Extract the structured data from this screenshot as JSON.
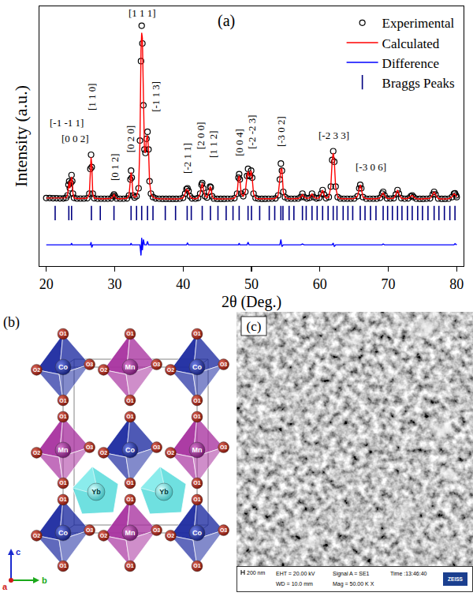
{
  "chart_data": {
    "type": "scatter",
    "panel_label": "(a)",
    "x_label": "2θ (Deg.)",
    "y_label": "Intensity (a.u.)",
    "xlim": [
      19,
      81
    ],
    "xticks": [
      20,
      30,
      40,
      50,
      60,
      70,
      80
    ],
    "ylim": [
      -36,
      111
    ],
    "tick_labels": "x",
    "grid": false,
    "legend": "top-right",
    "x": [
      20.0,
      20.5,
      21.0,
      21.5,
      22.0,
      22.5,
      22.9,
      23.1,
      23.25,
      23.35,
      23.45,
      23.6,
      23.7,
      23.8,
      23.9,
      24.05,
      24.5,
      25.0,
      25.5,
      26.0,
      26.3,
      26.45,
      26.55,
      26.65,
      26.8,
      27.0,
      27.5,
      28.0,
      28.5,
      29.0,
      29.5,
      29.75,
      29.9,
      30.05,
      30.3,
      30.8,
      31.3,
      31.8,
      32.1,
      32.3,
      32.4,
      32.5,
      32.7,
      32.9,
      33.2,
      33.5,
      33.7,
      33.85,
      33.95,
      34.05,
      34.2,
      34.35,
      34.5,
      34.65,
      34.8,
      34.95,
      35.1,
      35.3,
      35.6,
      36.0,
      36.5,
      37.0,
      37.5,
      38.0,
      38.5,
      39.0,
      39.5,
      40.0,
      40.3,
      40.5,
      40.65,
      40.8,
      41.0,
      41.3,
      41.8,
      42.2,
      42.5,
      42.7,
      42.8,
      42.95,
      43.2,
      43.5,
      43.8,
      43.95,
      44.05,
      44.25,
      44.5,
      45.0,
      45.5,
      46.0,
      46.5,
      47.0,
      47.5,
      47.9,
      48.1,
      48.2,
      48.3,
      48.5,
      48.8,
      49.1,
      49.35,
      49.5,
      49.65,
      49.8,
      49.95,
      50.1,
      50.3,
      50.6,
      51.0,
      51.5,
      52.0,
      52.5,
      53.0,
      53.5,
      53.9,
      54.15,
      54.3,
      54.45,
      54.65,
      54.9,
      55.3,
      55.8,
      56.3,
      56.8,
      57.2,
      57.45,
      57.7,
      58.1,
      58.5,
      58.85,
      59.1,
      59.5,
      59.9,
      60.2,
      60.4,
      60.6,
      60.9,
      61.3,
      61.6,
      61.8,
      61.95,
      62.1,
      62.3,
      62.6,
      63.0,
      63.5,
      64.0,
      64.5,
      65.0,
      65.5,
      65.75,
      65.9,
      66.05,
      66.3,
      66.8,
      67.3,
      67.8,
      68.3,
      68.8,
      69.1,
      69.25,
      69.45,
      69.8,
      70.3,
      70.8,
      71.1,
      71.35,
      71.55,
      71.9,
      72.4,
      72.9,
      73.3,
      73.5,
      73.7,
      74.1,
      74.6,
      75.1,
      75.6,
      76.1,
      76.5,
      76.7,
      76.9,
      77.3,
      77.8,
      78.3,
      78.8,
      79.3,
      79.6,
      79.75,
      79.9,
      80.0
    ],
    "series": [
      {
        "name": "Experimental",
        "type": "scatter",
        "marker": "circle-open",
        "color": "#000000",
        "values": [
          2.5,
          2.5,
          2.4,
          2.4,
          2.3,
          2.3,
          2.6,
          4,
          10,
          12,
          8,
          11,
          15.5,
          12,
          5,
          2.6,
          2.2,
          2.2,
          2.2,
          2.4,
          5,
          19,
          27,
          20,
          5,
          2.4,
          2.1,
          2.1,
          2.1,
          2.1,
          2.3,
          3.5,
          4.5,
          3.5,
          2.2,
          2.1,
          2.1,
          2.3,
          4,
          13,
          18,
          14,
          4,
          2.8,
          3.5,
          8,
          35,
          80,
          100,
          90,
          55,
          30,
          28,
          36,
          40,
          30,
          12,
          5,
          3,
          2.3,
          2.1,
          2.0,
          2.0,
          2.0,
          2.0,
          2.0,
          2.1,
          2.6,
          5,
          7.5,
          8,
          6.5,
          3.5,
          2.3,
          2.1,
          2.5,
          5,
          10,
          11,
          8,
          3.5,
          2.8,
          6,
          9,
          8.5,
          3.5,
          2.2,
          2.0,
          2.0,
          2.0,
          2.1,
          2.1,
          2.4,
          5,
          14,
          16,
          13,
          5,
          3.5,
          6,
          15,
          19,
          15,
          15,
          18,
          14,
          5,
          2.5,
          2.1,
          2.0,
          2.0,
          2.1,
          2.1,
          2.3,
          4,
          13,
          22,
          18,
          6,
          3,
          2.2,
          2.1,
          2.1,
          2.2,
          3,
          5,
          3,
          2.3,
          2.6,
          5,
          3,
          2.3,
          2.6,
          5,
          7,
          4.5,
          2.4,
          3,
          9,
          24,
          29,
          23,
          9,
          3,
          2.2,
          2.1,
          2.1,
          2.1,
          2.2,
          3.5,
          8,
          10,
          8,
          3,
          2.1,
          2.1,
          2.1,
          2.1,
          2.6,
          5,
          6,
          4,
          2.3,
          2.2,
          2.4,
          4.5,
          7,
          5,
          2.4,
          2.1,
          2.3,
          3.5,
          4,
          3,
          2.1,
          2.0,
          2.0,
          2.1,
          2.3,
          4.5,
          6,
          4.5,
          2.2,
          2.0,
          2.0,
          2.1,
          3,
          5,
          5.2,
          4,
          3
        ]
      },
      {
        "name": "Calculated",
        "type": "line",
        "line_style": "solid",
        "color": "#ff0000",
        "values": [
          2.5,
          2.5,
          2.4,
          2.4,
          2.3,
          2.3,
          2.6,
          4,
          10,
          12,
          8,
          11,
          14.5,
          12,
          5,
          2.6,
          2.2,
          2.2,
          2.2,
          2.4,
          5,
          19,
          25.5,
          21.5,
          5,
          2.4,
          2.1,
          2.1,
          2.1,
          2.1,
          2.3,
          3.5,
          4.5,
          3.5,
          2.2,
          2.1,
          2.1,
          2.3,
          4,
          13,
          17,
          14,
          4,
          2.8,
          3.5,
          8,
          35,
          86,
          96,
          93,
          52,
          30,
          28,
          36,
          38,
          30,
          12,
          5,
          3,
          2.3,
          2.1,
          2.0,
          2.0,
          2.0,
          2.0,
          2.0,
          2.1,
          2.6,
          5,
          7.5,
          7,
          6.5,
          3.5,
          2.3,
          2.1,
          2.5,
          5,
          10,
          11,
          8,
          3.5,
          2.8,
          6,
          9,
          8.5,
          3.5,
          2.2,
          2.0,
          2.0,
          2.0,
          2.1,
          2.1,
          2.4,
          5,
          14,
          15,
          13,
          5,
          3.5,
          6,
          15,
          17.5,
          15,
          15,
          18,
          14,
          5,
          2.5,
          2.1,
          2.0,
          2.0,
          2.1,
          2.1,
          2.3,
          4,
          13,
          19,
          19,
          6,
          3,
          2.2,
          2.1,
          2.1,
          2.2,
          3,
          4.5,
          3,
          2.3,
          2.6,
          5,
          3,
          2.3,
          2.6,
          5,
          7,
          4.5,
          2.4,
          3,
          9,
          24,
          28,
          24,
          9,
          3,
          2.2,
          2.1,
          2.1,
          2.1,
          2.2,
          3.5,
          8,
          10,
          8,
          3,
          2.1,
          2.1,
          2.1,
          2.1,
          2.6,
          5,
          5.5,
          4,
          2.3,
          2.2,
          2.4,
          4.5,
          7,
          5,
          2.4,
          2.1,
          2.3,
          3.5,
          4,
          3,
          2.1,
          2.0,
          2.0,
          2.1,
          2.3,
          4.5,
          6,
          4.5,
          2.2,
          2.0,
          2.0,
          2.1,
          3,
          5,
          4.5,
          4,
          3
        ]
      },
      {
        "name": "Difference",
        "type": "line",
        "line_style": "solid",
        "color": "#0000ff",
        "values": [
          -24,
          -24,
          -24,
          -24,
          -24,
          -24,
          -24,
          -24,
          -24,
          -24,
          -24,
          -24,
          -23,
          -24,
          -24,
          -24,
          -24,
          -24,
          -24,
          -24,
          -24,
          -24,
          -22.5,
          -25.5,
          -24,
          -24,
          -24,
          -24,
          -24,
          -24,
          -24,
          -24,
          -24,
          -24,
          -24,
          -24,
          -24,
          -24,
          -24,
          -24,
          -23,
          -24,
          -24,
          -24,
          -24,
          -24,
          -24,
          -30,
          -20,
          -27,
          -21,
          -24,
          -24,
          -24,
          -22,
          -24,
          -24,
          -24,
          -24,
          -24,
          -24,
          -24,
          -24,
          -24,
          -24,
          -24,
          -24,
          -24,
          -24,
          -24,
          -23,
          -24,
          -24,
          -24,
          -24,
          -24,
          -24,
          -24,
          -24,
          -24,
          -24,
          -24,
          -24,
          -24,
          -24,
          -24,
          -24,
          -24,
          -24,
          -24,
          -24,
          -24,
          -24,
          -24,
          -24,
          -23,
          -24,
          -24,
          -24,
          -24,
          -24,
          -22.5,
          -24,
          -24,
          -24,
          -24,
          -24,
          -24,
          -24,
          -24,
          -24,
          -24,
          -24,
          -24,
          -24,
          -24,
          -21,
          -25,
          -24,
          -24,
          -24,
          -24,
          -24,
          -24,
          -24,
          -23.5,
          -24,
          -24,
          -24,
          -24,
          -24,
          -24,
          -24,
          -24,
          -24,
          -24,
          -24,
          -24,
          -24,
          -24,
          -23,
          -25,
          -24,
          -24,
          -24,
          -24,
          -24,
          -24,
          -24,
          -24,
          -24,
          -24,
          -24,
          -24,
          -24,
          -24,
          -24,
          -24,
          -24,
          -24,
          -23.5,
          -24,
          -24,
          -24,
          -24,
          -24,
          -24,
          -24,
          -24,
          -24,
          -24,
          -24,
          -24,
          -24,
          -24,
          -24,
          -24,
          -24,
          -24,
          -24,
          -24,
          -24,
          -24,
          -24,
          -24,
          -24,
          -24,
          -24,
          -23.3,
          -24,
          -24
        ]
      },
      {
        "name": "Braggs Peaks",
        "type": "scatter",
        "marker": "line-ns-open",
        "color": "#000080",
        "x": [
          21.3,
          23.3,
          23.7,
          26.6,
          27.9,
          29.9,
          32.4,
          33.2,
          33.95,
          34.8,
          35.6,
          37.4,
          38.9,
          40.6,
          41.2,
          42.8,
          44.0,
          45.1,
          46.3,
          47.3,
          48.2,
          49.5,
          50.0,
          51.2,
          52.6,
          53.4,
          54.3,
          54.6,
          55.5,
          56.2,
          57.45,
          58.0,
          58.85,
          59.6,
          60.4,
          61.2,
          61.95,
          62.5,
          63.4,
          64.1,
          64.8,
          65.9,
          66.6,
          67.4,
          68.2,
          69.25,
          69.9,
          70.6,
          71.35,
          72.0,
          72.8,
          73.5,
          74.3,
          75.0,
          75.8,
          76.7,
          77.4,
          78.2,
          79.0,
          79.75
        ],
        "values": [
          -6,
          -6,
          -6,
          -6,
          -6,
          -6,
          -6,
          -6,
          -6,
          -6,
          -6,
          -6,
          -6,
          -6,
          -6,
          -6,
          -6,
          -6,
          -6,
          -6,
          -6,
          -6,
          -6,
          -6,
          -6,
          -6,
          -6,
          -6,
          -6,
          -6,
          -6,
          -6,
          -6,
          -6,
          -6,
          -6,
          -6,
          -6,
          -6,
          -6,
          -6,
          -6,
          -6,
          -6,
          -6,
          -6,
          -6,
          -6,
          -6,
          -6,
          -6,
          -6,
          -6,
          -6,
          -6,
          -6,
          -6,
          -6,
          -6,
          -6
        ]
      }
    ],
    "annotations": [
      {
        "text": "[1 1 1]",
        "x": 34.0,
        "y": 107
      },
      {
        "text": "[-1 -1 1]",
        "x": 23.0,
        "y": 45
      },
      {
        "text": "[0 0 2]",
        "x": 24.3,
        "y": 36
      },
      {
        "text": "[1 1 0]",
        "x": 26.6,
        "y": 60,
        "orientation": "vertical"
      },
      {
        "text": "[0 1 2]",
        "x": 30.0,
        "y": 20,
        "orientation": "vertical"
      },
      {
        "text": "[0 2 0]",
        "x": 32.3,
        "y": 36,
        "orientation": "vertical"
      },
      {
        "text": "[-1 1 3]",
        "x": 35.9,
        "y": 60,
        "orientation": "vertical"
      },
      {
        "text": "[-2 1 1]",
        "x": 40.6,
        "y": 25,
        "orientation": "vertical"
      },
      {
        "text": "[2 0 0]",
        "x": 42.6,
        "y": 38,
        "orientation": "vertical"
      },
      {
        "text": "[1 1 2]",
        "x": 44.4,
        "y": 33,
        "orientation": "vertical"
      },
      {
        "text": "[0 0 4]",
        "x": 48.2,
        "y": 34,
        "orientation": "vertical"
      },
      {
        "text": "[-2 -2 3]",
        "x": 50.1,
        "y": 40,
        "orientation": "vertical"
      },
      {
        "text": "[-3 0 2]",
        "x": 54.4,
        "y": 40,
        "orientation": "vertical"
      },
      {
        "text": "[-2 3 3]",
        "x": 62.0,
        "y": 38
      },
      {
        "text": "[-3 0 6]",
        "x": 67.5,
        "y": 20
      }
    ]
  },
  "structure": {
    "panel_label": "(b)",
    "metals": [
      "Co",
      "Mn",
      "Yb"
    ],
    "oxygens": [
      "O1",
      "O2",
      "O3"
    ],
    "axes": [
      "a",
      "b",
      "c"
    ]
  },
  "micrograph": {
    "panel_label": "(c)",
    "scale_bar": "200 nm",
    "info": [
      "EHT = 20.00 kV",
      "WD = 10.0 mm",
      "Signal A = SE1",
      "Mag = 50.00 K X",
      "Time :13:46:40"
    ],
    "logo": "ZEISS"
  }
}
